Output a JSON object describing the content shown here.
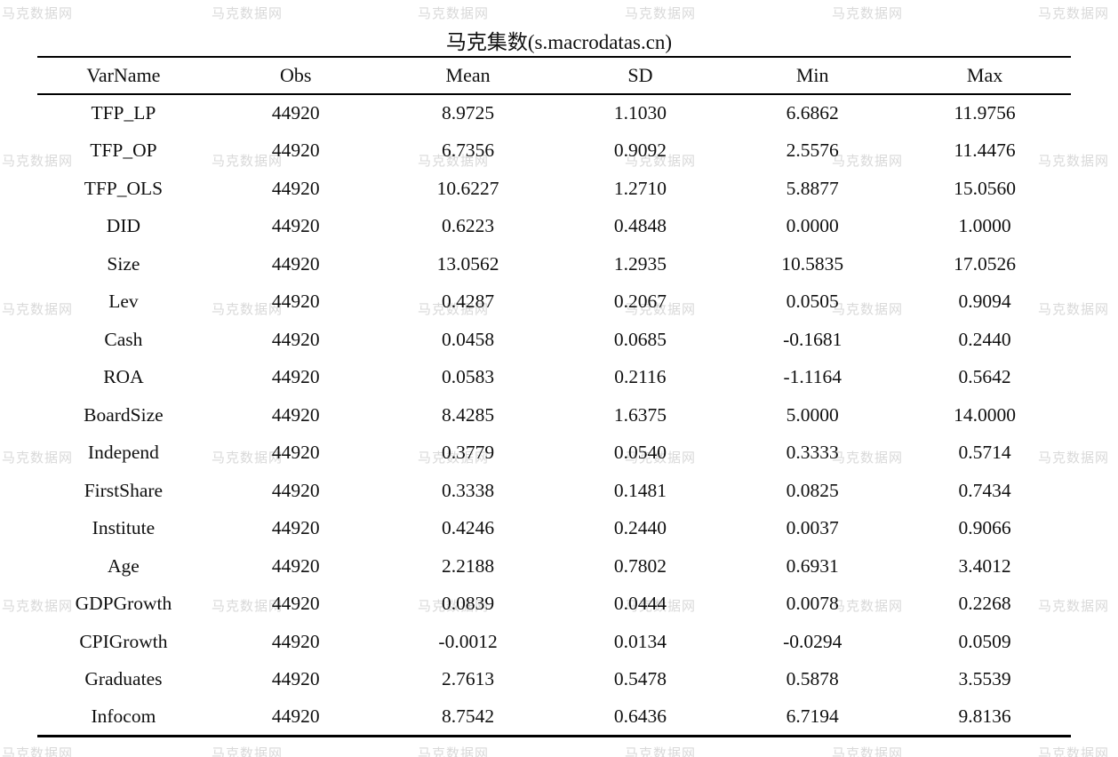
{
  "title": "马克集数(s.macrodatas.cn)",
  "watermark": {
    "text": "马克数据网",
    "color": "#d9d9d9"
  },
  "chart_data": {
    "type": "table",
    "title": "马克集数(s.macrodatas.cn)",
    "columns": [
      "VarName",
      "Obs",
      "Mean",
      "SD",
      "Min",
      "Max"
    ],
    "rows": [
      [
        "TFP_LP",
        "44920",
        "8.9725",
        "1.1030",
        "6.6862",
        "11.9756"
      ],
      [
        "TFP_OP",
        "44920",
        "6.7356",
        "0.9092",
        "2.5576",
        "11.4476"
      ],
      [
        "TFP_OLS",
        "44920",
        "10.6227",
        "1.2710",
        "5.8877",
        "15.0560"
      ],
      [
        "DID",
        "44920",
        "0.6223",
        "0.4848",
        "0.0000",
        "1.0000"
      ],
      [
        "Size",
        "44920",
        "13.0562",
        "1.2935",
        "10.5835",
        "17.0526"
      ],
      [
        "Lev",
        "44920",
        "0.4287",
        "0.2067",
        "0.0505",
        "0.9094"
      ],
      [
        "Cash",
        "44920",
        "0.0458",
        "0.0685",
        "-0.1681",
        "0.2440"
      ],
      [
        "ROA",
        "44920",
        "0.0583",
        "0.2116",
        "-1.1164",
        "0.5642"
      ],
      [
        "BoardSize",
        "44920",
        "8.4285",
        "1.6375",
        "5.0000",
        "14.0000"
      ],
      [
        "Independ",
        "44920",
        "0.3779",
        "0.0540",
        "0.3333",
        "0.5714"
      ],
      [
        "FirstShare",
        "44920",
        "0.3338",
        "0.1481",
        "0.0825",
        "0.7434"
      ],
      [
        "Institute",
        "44920",
        "0.4246",
        "0.2440",
        "0.0037",
        "0.9066"
      ],
      [
        "Age",
        "44920",
        "2.2188",
        "0.7802",
        "0.6931",
        "3.4012"
      ],
      [
        "GDPGrowth",
        "44920",
        "0.0839",
        "0.0444",
        "0.0078",
        "0.2268"
      ],
      [
        "CPIGrowth",
        "44920",
        "-0.0012",
        "0.0134",
        "-0.0294",
        "0.0509"
      ],
      [
        "Graduates",
        "44920",
        "2.7613",
        "0.5478",
        "0.5878",
        "3.5539"
      ],
      [
        "Infocom",
        "44920",
        "8.7542",
        "0.6436",
        "6.7194",
        "9.8136"
      ]
    ]
  }
}
